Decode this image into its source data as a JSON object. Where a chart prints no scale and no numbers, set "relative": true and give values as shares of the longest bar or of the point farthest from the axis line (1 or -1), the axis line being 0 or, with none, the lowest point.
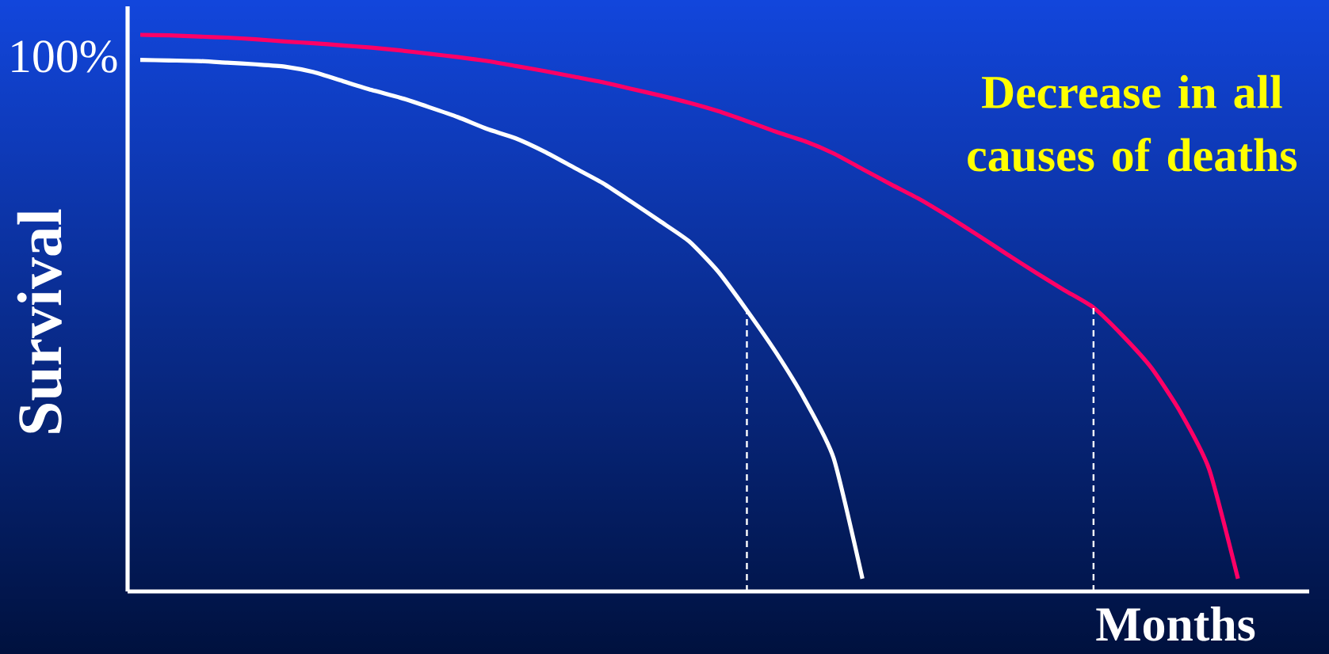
{
  "chart_data": {
    "type": "line",
    "relative": true,
    "xlabel": "Months",
    "ylabel": "Survival",
    "annotations": [
      "100%",
      "Decrease in all causes of deaths"
    ],
    "categories": [
      null,
      null,
      null,
      null,
      null,
      null,
      null,
      null,
      null,
      null,
      null,
      null,
      null,
      null,
      null,
      null,
      null,
      null,
      null,
      null,
      null,
      null,
      null,
      null,
      null,
      null,
      null,
      null,
      null,
      null,
      null,
      null,
      null,
      null,
      null,
      null,
      null,
      null,
      null
    ],
    "series": [
      {
        "color": "#ffffff",
        "values": [
          0.955,
          0.954,
          0.953,
          0.95,
          0.947,
          0.943,
          0.933,
          0.917,
          0.901,
          0.887,
          0.87,
          0.852,
          0.831,
          0.814,
          0.79,
          0.762,
          0.734,
          0.7,
          0.665,
          0.629,
          0.575,
          0.505,
          0.43,
          0.345,
          0.24,
          0.023,
          null,
          null,
          null,
          null,
          null,
          null,
          null,
          null,
          null,
          null,
          null,
          null,
          null
        ]
      },
      {
        "color": "#ff0066",
        "values": [
          1.0,
          0.999,
          0.997,
          0.995,
          0.992,
          0.988,
          0.985,
          0.981,
          0.977,
          0.972,
          0.966,
          0.96,
          0.953,
          0.944,
          0.935,
          0.925,
          0.915,
          0.903,
          0.891,
          0.878,
          0.863,
          0.845,
          0.826,
          0.809,
          0.787,
          0.759,
          0.731,
          0.704,
          0.673,
          0.64,
          0.606,
          0.573,
          0.541,
          0.51,
          0.46,
          0.402,
          0.323,
          0.22,
          0.023
        ]
      }
    ]
  }
}
